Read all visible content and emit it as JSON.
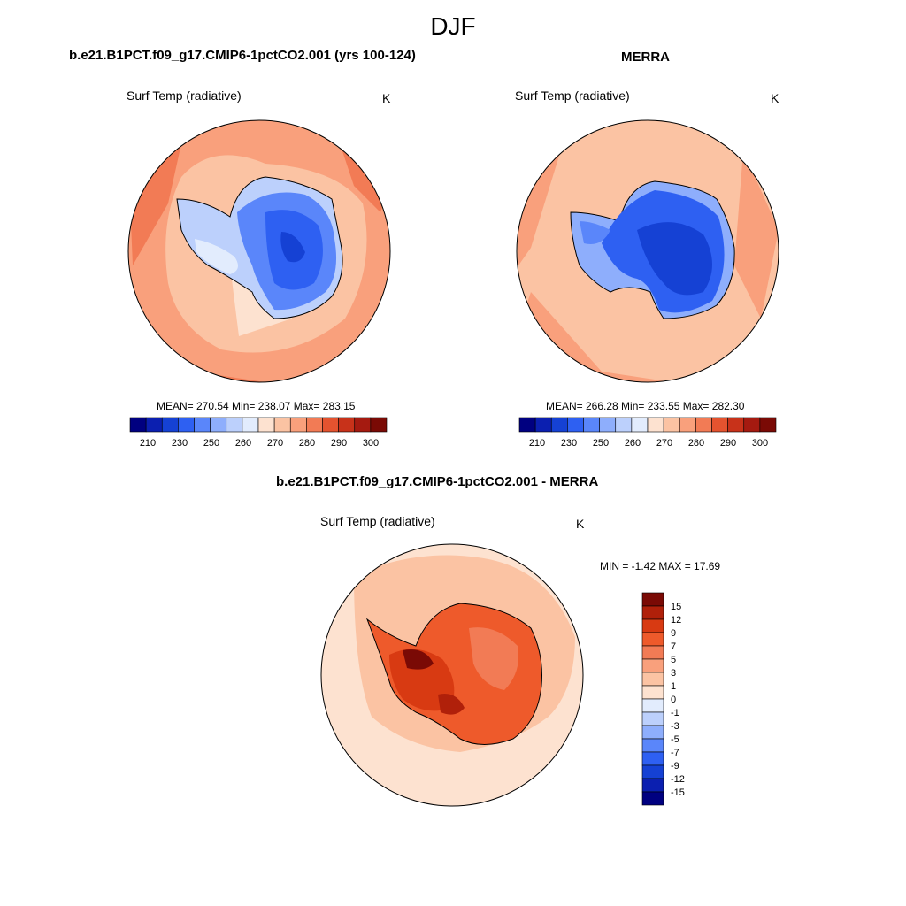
{
  "figure": {
    "season": "DJF",
    "colors": {
      "levels_temp": [
        "#000080",
        "#0b1fb0",
        "#1541d4",
        "#2e60f2",
        "#5a86fa",
        "#8eaefc",
        "#bcd0fc",
        "#e2ecfd",
        "#fde2d0",
        "#fbc3a3",
        "#f9a07c",
        "#f27b55",
        "#e4532f",
        "#c8321a",
        "#a51a10",
        "#7a0a05"
      ],
      "levels_diff": [
        "#000080",
        "#0b1fb0",
        "#1541d4",
        "#2e60f2",
        "#5a86fa",
        "#8eaefc",
        "#bcd0fc",
        "#e2ecfd",
        "#fde2d0",
        "#fbc3a3",
        "#f9a07c",
        "#f27b55",
        "#ee5a2b",
        "#d83a12",
        "#b0200a",
        "#7a0a05"
      ]
    }
  },
  "panel_model": {
    "title": "b.e21.B1PCT.f09_g17.CMIP6-1pctCO2.001 (yrs 100-124)",
    "variable": "Surf Temp (radiative)",
    "units": "K",
    "stats": "MEAN= 270.54  Min= 238.07  Max= 283.15",
    "colorbar_ticks": [
      "210",
      "230",
      "250",
      "260",
      "270",
      "280",
      "290",
      "300"
    ]
  },
  "panel_obs": {
    "title": "MERRA",
    "variable": "Surf Temp (radiative)",
    "units": "K",
    "stats": "MEAN= 266.28  Min= 233.55  Max= 282.30",
    "colorbar_ticks": [
      "210",
      "230",
      "250",
      "260",
      "270",
      "280",
      "290",
      "300"
    ]
  },
  "panel_diff": {
    "title": "b.e21.B1PCT.f09_g17.CMIP6-1pctCO2.001 - MERRA",
    "variable": "Surf Temp (radiative)",
    "units": "K",
    "stats": "MIN =  -1.42 MAX =  17.69",
    "colorbar_ticks": [
      "15",
      "12",
      "9",
      "7",
      "5",
      "3",
      "1",
      "0",
      "-1",
      "-3",
      "-5",
      "-7",
      "-9",
      "-12",
      "-15"
    ]
  }
}
